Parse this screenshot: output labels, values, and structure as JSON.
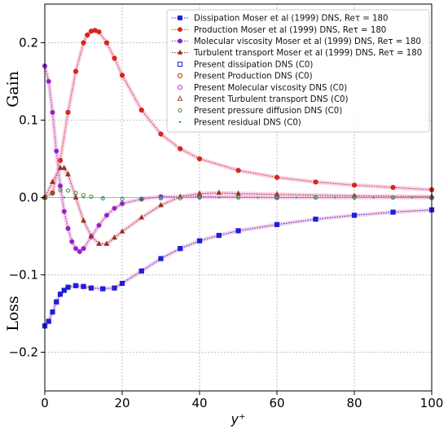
{
  "chart_data": {
    "type": "line",
    "xlabel": "y⁺",
    "annotations": {
      "gain": "Gain",
      "loss": "Loss"
    },
    "xlim": [
      0,
      100
    ],
    "ylim": [
      -0.25,
      0.25
    ],
    "x_ticks": [
      {
        "value": 0,
        "label": "0"
      },
      {
        "value": 20,
        "label": "20"
      },
      {
        "value": 40,
        "label": "40"
      },
      {
        "value": 60,
        "label": "60"
      },
      {
        "value": 80,
        "label": "80"
      },
      {
        "value": 100,
        "label": "100"
      }
    ],
    "y_ticks": [
      {
        "value": -0.2,
        "label": "−0.2"
      },
      {
        "value": -0.1,
        "label": "−0.1"
      },
      {
        "value": 0.0,
        "label": "0.0"
      },
      {
        "value": 0.1,
        "label": "0.1"
      },
      {
        "value": 0.2,
        "label": "0.2"
      }
    ],
    "grid": true,
    "legend_position": "top-right",
    "series": [
      {
        "name": "Dissipation Moser et al (1999) DNS, Reτ = 180",
        "role": "reference",
        "marker": "square-filled",
        "color": "#1f1fd8",
        "x": [
          0,
          1,
          2,
          3,
          4,
          5,
          6,
          8,
          10,
          12,
          15,
          18,
          20,
          25,
          30,
          35,
          40,
          45,
          50,
          60,
          70,
          80,
          90,
          100
        ],
        "y": [
          -0.166,
          -0.16,
          -0.148,
          -0.135,
          -0.125,
          -0.12,
          -0.116,
          -0.114,
          -0.115,
          -0.117,
          -0.118,
          -0.117,
          -0.111,
          -0.095,
          -0.079,
          -0.066,
          -0.056,
          -0.049,
          -0.043,
          -0.035,
          -0.028,
          -0.023,
          -0.019,
          -0.016
        ]
      },
      {
        "name": "Production Moser et al (1999) DNS, Reτ = 180",
        "role": "reference",
        "marker": "circle-filled",
        "color": "#d62718",
        "x": [
          0,
          2,
          4,
          6,
          8,
          10,
          11,
          12,
          13,
          14,
          16,
          18,
          20,
          25,
          30,
          35,
          40,
          50,
          60,
          70,
          80,
          90,
          100
        ],
        "y": [
          0,
          0.006,
          0.048,
          0.11,
          0.163,
          0.2,
          0.21,
          0.215,
          0.216,
          0.214,
          0.2,
          0.18,
          0.158,
          0.113,
          0.082,
          0.063,
          0.05,
          0.035,
          0.026,
          0.02,
          0.016,
          0.013,
          0.01
        ]
      },
      {
        "name": "Molecular viscosity Moser et al (1999) DNS, Reτ = 180",
        "role": "reference",
        "marker": "circle-filled",
        "color": "#8a1fc2",
        "x": [
          0,
          1,
          2,
          3,
          4,
          5,
          6,
          7,
          8,
          9,
          10,
          12,
          14,
          16,
          18,
          20,
          25,
          30,
          40,
          60,
          100
        ],
        "y": [
          0.17,
          0.15,
          0.11,
          0.06,
          0.015,
          -0.018,
          -0.04,
          -0.057,
          -0.066,
          -0.07,
          -0.066,
          -0.051,
          -0.036,
          -0.023,
          -0.014,
          -0.008,
          -0.002,
          0.001,
          0.001,
          0.0,
          0.0
        ]
      },
      {
        "name": "Turbulent transport Moser et al (1999) DNS, Reτ = 180",
        "role": "reference",
        "marker": "triangle-filled",
        "color": "#8b2a1a",
        "x": [
          0,
          2,
          4,
          5,
          6,
          8,
          10,
          12,
          14,
          16,
          18,
          20,
          25,
          30,
          35,
          40,
          45,
          50,
          60,
          80,
          100
        ],
        "y": [
          0,
          0.02,
          0.038,
          0.038,
          0.03,
          0.0,
          -0.03,
          -0.05,
          -0.06,
          -0.06,
          -0.052,
          -0.044,
          -0.026,
          -0.01,
          0.001,
          0.005,
          0.006,
          0.005,
          0.004,
          0.002,
          0.001
        ]
      },
      {
        "name": "Present dissipation DNS (C0)",
        "role": "present",
        "marker": "square-open",
        "color": "#1f1fd8",
        "x": [
          0,
          1,
          2,
          3,
          4,
          5,
          6,
          8,
          10,
          12,
          15,
          18,
          20,
          25,
          30,
          35,
          40,
          45,
          50,
          60,
          70,
          80,
          90,
          100
        ],
        "y": [
          -0.166,
          -0.16,
          -0.148,
          -0.135,
          -0.125,
          -0.12,
          -0.116,
          -0.114,
          -0.115,
          -0.117,
          -0.118,
          -0.117,
          -0.111,
          -0.095,
          -0.079,
          -0.066,
          -0.056,
          -0.049,
          -0.043,
          -0.035,
          -0.028,
          -0.023,
          -0.019,
          -0.016
        ]
      },
      {
        "name": "Present Production DNS (C0)",
        "role": "present",
        "marker": "circle-open",
        "color": "#d62718",
        "x": [
          0,
          2,
          4,
          6,
          8,
          10,
          11,
          12,
          13,
          14,
          16,
          18,
          20,
          25,
          30,
          35,
          40,
          50,
          60,
          70,
          80,
          90,
          100
        ],
        "y": [
          0,
          0.006,
          0.048,
          0.11,
          0.163,
          0.2,
          0.21,
          0.215,
          0.216,
          0.214,
          0.2,
          0.18,
          0.158,
          0.113,
          0.082,
          0.063,
          0.05,
          0.035,
          0.026,
          0.02,
          0.016,
          0.013,
          0.01
        ]
      },
      {
        "name": "Present Molecular viscosity DNS (C0)",
        "role": "present",
        "marker": "circle-open",
        "color": "#b03fe0",
        "x": [
          0,
          1,
          2,
          3,
          4,
          5,
          6,
          7,
          8,
          9,
          10,
          12,
          14,
          16,
          18,
          20,
          25,
          30,
          40,
          60,
          100
        ],
        "y": [
          0.17,
          0.15,
          0.11,
          0.06,
          0.015,
          -0.018,
          -0.04,
          -0.057,
          -0.066,
          -0.07,
          -0.066,
          -0.051,
          -0.036,
          -0.023,
          -0.014,
          -0.008,
          -0.002,
          0.001,
          0.001,
          0.0,
          0.0
        ]
      },
      {
        "name": "Present Turbulent transport DNS (C0)",
        "role": "present",
        "marker": "triangle-open",
        "color": "#a0402a",
        "x": [
          0,
          2,
          4,
          5,
          6,
          8,
          10,
          12,
          14,
          16,
          18,
          20,
          25,
          30,
          35,
          40,
          45,
          50,
          60,
          80,
          100
        ],
        "y": [
          0,
          0.02,
          0.038,
          0.038,
          0.03,
          0.0,
          -0.03,
          -0.05,
          -0.06,
          -0.06,
          -0.052,
          -0.044,
          -0.026,
          -0.01,
          0.001,
          0.005,
          0.006,
          0.005,
          0.004,
          0.002,
          0.001
        ]
      },
      {
        "name": "Present pressure diffusion DNS (C0)",
        "role": "present",
        "marker": "circle-open-small",
        "color": "#3c8a2e",
        "x": [
          0,
          2,
          4,
          6,
          8,
          10,
          12,
          15,
          20,
          25,
          30,
          35,
          40,
          50,
          60,
          70,
          80,
          90,
          100
        ],
        "y": [
          0,
          0.005,
          0.01,
          0.009,
          0.006,
          0.003,
          0.001,
          -0.001,
          -0.002,
          -0.002,
          -0.001,
          -0.001,
          0,
          0,
          0,
          0,
          0,
          0,
          0
        ]
      },
      {
        "name": "Present residual DNS (C0)",
        "role": "present",
        "marker": "dot",
        "color": "#2a9fbf",
        "x": [
          0,
          5,
          10,
          15,
          20,
          25,
          30,
          35,
          40,
          45,
          50,
          55,
          60,
          65,
          70,
          75,
          80,
          85,
          90,
          95,
          100
        ],
        "y": [
          0,
          0,
          0,
          0,
          0,
          0,
          0,
          0,
          0,
          0,
          0,
          0,
          0,
          0,
          0,
          0,
          0,
          0,
          0,
          0,
          0
        ]
      }
    ]
  }
}
